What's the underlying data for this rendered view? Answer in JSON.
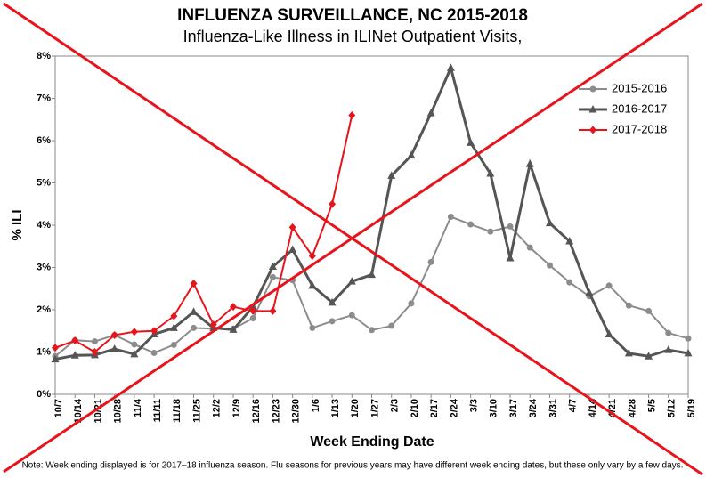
{
  "chart_data": {
    "type": "line",
    "title": "INFLUENZA SURVEILLANCE, NC 2015-2018",
    "subtitle": "Influenza-Like Illness in ILINet Outpatient Visits,",
    "x_label": "Week Ending Date",
    "y_label": "% ILI",
    "note": "Note:  Week ending displayed is for 2017–18 influenza season.  Flu seasons for previous years may have different week ending dates, but these only vary by a few days.",
    "categories": [
      "10/7",
      "10/14",
      "10/21",
      "10/28",
      "11/4",
      "11/11",
      "11/18",
      "11/25",
      "12/2",
      "12/9",
      "12/16",
      "12/23",
      "12/30",
      "1/6",
      "1/13",
      "1/20",
      "1/27",
      "2/3",
      "2/10",
      "2/17",
      "2/24",
      "3/3",
      "3/10",
      "3/17",
      "3/24",
      "3/31",
      "4/7",
      "4/14",
      "4/21",
      "4/28",
      "5/5",
      "5/12",
      "5/19"
    ],
    "series": [
      {
        "name": "2015-2016",
        "color": "#8c8c8c",
        "marker": "circle",
        "values": [
          0.9,
          1.28,
          1.25,
          1.4,
          1.18,
          0.98,
          1.17,
          1.57,
          1.55,
          1.55,
          1.8,
          2.77,
          2.7,
          1.57,
          1.73,
          1.87,
          1.52,
          1.62,
          2.15,
          3.13,
          4.2,
          4.02,
          3.85,
          3.97,
          3.47,
          3.05,
          2.65,
          2.32,
          2.57,
          2.1,
          1.97,
          1.45,
          1.32
        ]
      },
      {
        "name": "2016-2017",
        "color": "#555555",
        "marker": "triangle",
        "values": [
          0.83,
          0.92,
          0.93,
          1.07,
          0.95,
          1.42,
          1.57,
          1.95,
          1.57,
          1.53,
          2.07,
          3.02,
          3.42,
          2.57,
          2.17,
          2.67,
          2.83,
          5.17,
          5.65,
          6.65,
          7.72,
          5.95,
          5.22,
          3.22,
          5.45,
          4.05,
          3.62,
          2.4,
          1.42,
          0.97,
          0.9,
          1.05,
          0.97
        ]
      },
      {
        "name": "2017-2018",
        "color": "#e8141c",
        "marker": "diamond",
        "values": [
          1.1,
          1.27,
          1.0,
          1.4,
          1.48,
          1.5,
          1.85,
          2.62,
          1.65,
          2.07,
          1.97,
          1.97,
          3.95,
          3.27,
          4.5,
          6.6,
          null,
          null,
          null,
          null,
          null,
          null,
          null,
          null,
          null,
          null,
          null,
          null,
          null,
          null,
          null,
          null,
          null
        ]
      }
    ],
    "ylim": [
      0,
      8
    ],
    "yticks": [
      {
        "value": 0,
        "label": "0%"
      },
      {
        "value": 1,
        "label": "1%"
      },
      {
        "value": 2,
        "label": "2%"
      },
      {
        "value": 3,
        "label": "3%"
      },
      {
        "value": 4,
        "label": "4%"
      },
      {
        "value": 5,
        "label": "5%"
      },
      {
        "value": 6,
        "label": "6%"
      },
      {
        "value": 7,
        "label": "7%"
      },
      {
        "value": 8,
        "label": "8%"
      }
    ],
    "legend": "upper right"
  }
}
